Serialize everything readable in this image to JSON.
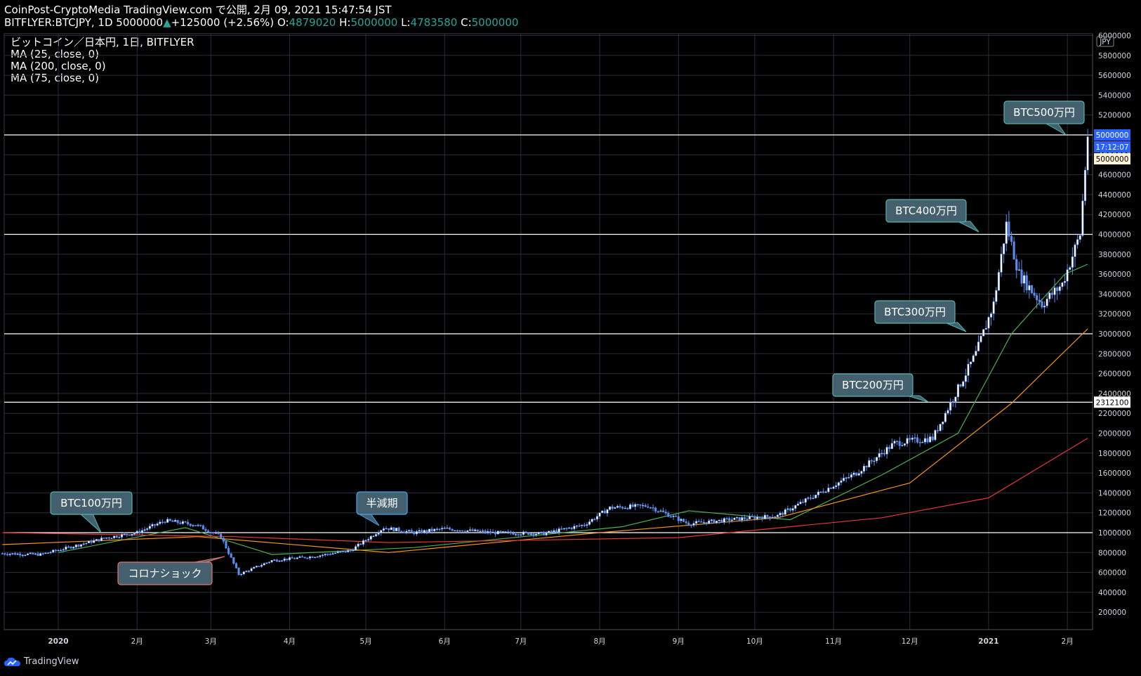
{
  "header": {
    "line1": "CoinPost-CryptoMedia TradingView.com で公開, 2月 09, 2021 15:47:54 JST",
    "symbol": "BITFLYER:BTCJPY, 1D 5000000",
    "change": "+125000 (+2.56%)",
    "o_label": "O:",
    "o_value": "4879020",
    "h_label": "H:",
    "h_value": "5000000",
    "l_label": "L:",
    "l_value": "4783580",
    "c_label": "C:",
    "c_value": "5000000"
  },
  "legend": {
    "title": "ビットコイン／日本円, 1日, BITFLYER",
    "ma1": "MA (25, close, 0)",
    "ma2": "MA (200, close, 0)",
    "ma3": "MA (75, close, 0)"
  },
  "footer": {
    "brand": "TradingView"
  },
  "colors": {
    "candle": "#5b8def",
    "ma25": "#4caf50",
    "ma75": "#f7931a",
    "ma200": "#e53935",
    "hline": "#ffffff",
    "grid": "#2a2e39",
    "annotation_bg": "#44606e"
  },
  "chart_data": {
    "type": "candlestick",
    "currency": "JPY",
    "y_ticks": [
      200000,
      400000,
      600000,
      800000,
      1000000,
      1200000,
      1400000,
      1600000,
      1800000,
      2000000,
      2200000,
      2400000,
      2600000,
      2800000,
      3000000,
      3200000,
      3400000,
      3600000,
      3800000,
      4000000,
      4200000,
      4400000,
      4600000,
      4800000,
      5000000,
      5200000,
      5400000,
      5600000,
      5800000,
      6000000
    ],
    "ylim": [
      0,
      6000000
    ],
    "x_ticks": [
      "2020",
      "2月",
      "3月",
      "4月",
      "5月",
      "6月",
      "7月",
      "8月",
      "9月",
      "10月",
      "11月",
      "12月",
      "2021",
      "2月"
    ],
    "price_labels": {
      "last": "5000000",
      "countdown": "17:12:07",
      "line": "5000000",
      "level": "2312100"
    },
    "horizontal_lines": [
      1000000,
      2312100,
      3000000,
      4000000,
      5000000
    ],
    "close_series": [
      {
        "date": "2019-12-10",
        "value": 790000
      },
      {
        "date": "2019-12-25",
        "value": 780000
      },
      {
        "date": "2020-01-08",
        "value": 870000
      },
      {
        "date": "2020-01-20",
        "value": 950000
      },
      {
        "date": "2020-02-01",
        "value": 1000000
      },
      {
        "date": "2020-02-12",
        "value": 1120000
      },
      {
        "date": "2020-02-24",
        "value": 1080000
      },
      {
        "date": "2020-03-05",
        "value": 960000
      },
      {
        "date": "2020-03-12",
        "value": 580000
      },
      {
        "date": "2020-03-25",
        "value": 720000
      },
      {
        "date": "2020-04-10",
        "value": 760000
      },
      {
        "date": "2020-04-25",
        "value": 820000
      },
      {
        "date": "2020-05-08",
        "value": 1050000
      },
      {
        "date": "2020-05-20",
        "value": 1000000
      },
      {
        "date": "2020-06-01",
        "value": 1040000
      },
      {
        "date": "2020-06-20",
        "value": 1000000
      },
      {
        "date": "2020-07-10",
        "value": 990000
      },
      {
        "date": "2020-07-26",
        "value": 1080000
      },
      {
        "date": "2020-08-05",
        "value": 1250000
      },
      {
        "date": "2020-08-20",
        "value": 1270000
      },
      {
        "date": "2020-09-05",
        "value": 1090000
      },
      {
        "date": "2020-09-25",
        "value": 1140000
      },
      {
        "date": "2020-10-10",
        "value": 1170000
      },
      {
        "date": "2020-10-25",
        "value": 1380000
      },
      {
        "date": "2020-11-10",
        "value": 1600000
      },
      {
        "date": "2020-11-25",
        "value": 1900000
      },
      {
        "date": "2020-12-10",
        "value": 1950000
      },
      {
        "date": "2020-12-17",
        "value": 2300000
      },
      {
        "date": "2020-12-27",
        "value": 2800000
      },
      {
        "date": "2021-01-03",
        "value": 3300000
      },
      {
        "date": "2021-01-08",
        "value": 4100000
      },
      {
        "date": "2021-01-13",
        "value": 3600000
      },
      {
        "date": "2021-01-22",
        "value": 3300000
      },
      {
        "date": "2021-01-30",
        "value": 3500000
      },
      {
        "date": "2021-02-06",
        "value": 4000000
      },
      {
        "date": "2021-02-09",
        "value": 5000000
      }
    ],
    "ma": [
      {
        "name": "MA (25, close, 0)",
        "points": [
          {
            "date": "2020-01-01",
            "value": 800000
          },
          {
            "date": "2020-02-20",
            "value": 1050000
          },
          {
            "date": "2020-03-25",
            "value": 780000
          },
          {
            "date": "2020-05-20",
            "value": 850000
          },
          {
            "date": "2020-08-10",
            "value": 1060000
          },
          {
            "date": "2020-09-05",
            "value": 1220000
          },
          {
            "date": "2020-10-15",
            "value": 1130000
          },
          {
            "date": "2020-11-20",
            "value": 1580000
          },
          {
            "date": "2020-12-20",
            "value": 2000000
          },
          {
            "date": "2021-01-10",
            "value": 3000000
          },
          {
            "date": "2021-01-31",
            "value": 3600000
          },
          {
            "date": "2021-02-09",
            "value": 3700000
          }
        ]
      },
      {
        "name": "MA (75, close, 0)",
        "points": [
          {
            "date": "2019-12-10",
            "value": 880000
          },
          {
            "date": "2020-02-25",
            "value": 960000
          },
          {
            "date": "2020-05-10",
            "value": 800000
          },
          {
            "date": "2020-08-01",
            "value": 1000000
          },
          {
            "date": "2020-10-10",
            "value": 1150000
          },
          {
            "date": "2020-12-01",
            "value": 1500000
          },
          {
            "date": "2021-01-10",
            "value": 2300000
          },
          {
            "date": "2021-02-09",
            "value": 3050000
          }
        ]
      },
      {
        "name": "MA (200, close, 0)",
        "points": [
          {
            "date": "2019-12-10",
            "value": 1000000
          },
          {
            "date": "2020-03-10",
            "value": 960000
          },
          {
            "date": "2020-05-10",
            "value": 900000
          },
          {
            "date": "2020-09-01",
            "value": 950000
          },
          {
            "date": "2020-11-20",
            "value": 1150000
          },
          {
            "date": "2021-01-01",
            "value": 1350000
          },
          {
            "date": "2021-02-09",
            "value": 1950000
          }
        ]
      }
    ],
    "annotations": [
      {
        "text": "BTC100万円"
      },
      {
        "text": "コロナショック"
      },
      {
        "text": "半減期"
      },
      {
        "text": "BTC200万円"
      },
      {
        "text": "BTC300万円"
      },
      {
        "text": "BTC400万円"
      },
      {
        "text": "BTC500万円"
      }
    ]
  }
}
